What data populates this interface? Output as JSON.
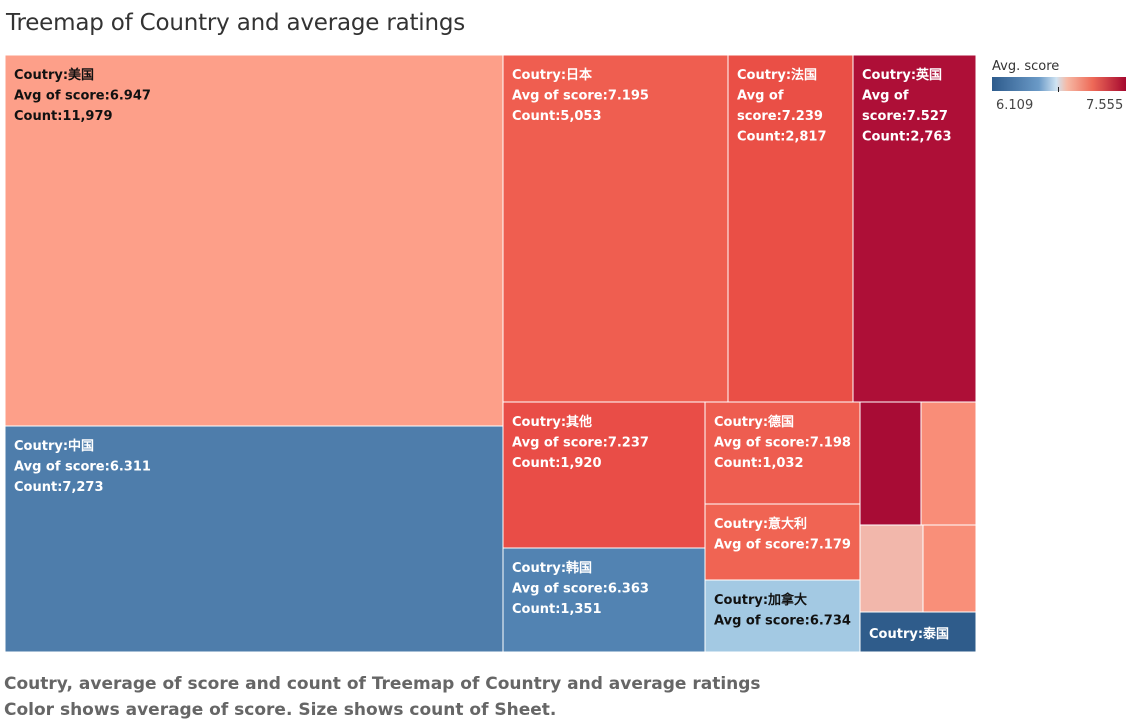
{
  "chart_data": {
    "type": "treemap",
    "title": "Treemap of Country and average ratings",
    "color_legend": {
      "title": "Avg. score",
      "min": "6.109",
      "max": "7.555",
      "range": [
        6.109,
        7.555
      ]
    },
    "items": [
      {
        "label": "Coutry:美国",
        "score_label": "Avg of score:6.947",
        "count_label": "Count:11,979",
        "score": 6.947,
        "count": 11979,
        "color": "#fd9f89",
        "text_color": "#111111"
      },
      {
        "label": "Coutry:中国",
        "score_label": "Avg of score:6.311",
        "count_label": "Count:7,273",
        "score": 6.311,
        "count": 7273,
        "color": "#4e7dab",
        "text_color": "#ffffff"
      },
      {
        "label": "Coutry:日本",
        "score_label": "Avg of score:7.195",
        "count_label": "Count:5,053",
        "score": 7.195,
        "count": 5053,
        "color": "#ef5e50",
        "text_color": "#ffffff"
      },
      {
        "label": "Coutry:法国",
        "score_label": "Avg of score:7.239",
        "count_label": "Count:2,817",
        "score": 7.239,
        "count": 2817,
        "color": "#ea4f46",
        "text_color": "#ffffff"
      },
      {
        "label": "Coutry:英国",
        "score_label": "Avg of score:7.527",
        "count_label": "Count:2,763",
        "score": 7.527,
        "count": 2763,
        "color": "#ae0f37",
        "text_color": "#ffffff"
      },
      {
        "label": "Coutry:其他",
        "score_label": "Avg of score:7.237",
        "count_label": "Count:1,920",
        "score": 7.237,
        "count": 1920,
        "color": "#e94d47",
        "text_color": "#ffffff"
      },
      {
        "label": "Coutry:韩国",
        "score_label": "Avg of score:6.363",
        "count_label": "Count:1,351",
        "score": 6.363,
        "count": 1351,
        "color": "#5283b2",
        "text_color": "#ffffff"
      },
      {
        "label": "Coutry:德国",
        "score_label": "Avg of score:7.198",
        "count_label": "Count:1,032",
        "score": 7.198,
        "count": 1032,
        "color": "#ee5d50",
        "text_color": "#ffffff"
      },
      {
        "label": "Coutry:意大利",
        "score_label": "Avg of score:7.179",
        "count_label": "",
        "score": 7.179,
        "count": null,
        "color": "#f06453",
        "text_color": "#ffffff"
      },
      {
        "label": "Coutry:加拿大",
        "score_label": "Avg of score:6.734",
        "count_label": "",
        "score": 6.734,
        "count": null,
        "color": "#a3c9e3",
        "text_color": "#111111"
      },
      {
        "label": "",
        "score_label": "",
        "count_label": "",
        "score": null,
        "count": null,
        "color": "#a80c35",
        "text_color": "#ffffff"
      },
      {
        "label": "",
        "score_label": "",
        "count_label": "",
        "score": null,
        "count": null,
        "color": "#f98d78",
        "text_color": "#ffffff"
      },
      {
        "label": "",
        "score_label": "",
        "count_label": "",
        "score": null,
        "count": null,
        "color": "#f2b7ab",
        "text_color": "#ffffff"
      },
      {
        "label": "",
        "score_label": "",
        "count_label": "",
        "score": null,
        "count": null,
        "color": "#f98f79",
        "text_color": "#ffffff"
      },
      {
        "label": "Coutry:泰国",
        "score_label": "",
        "count_label": "",
        "score": null,
        "count": null,
        "color": "#2f5c8b",
        "text_color": "#ffffff"
      }
    ]
  },
  "caption": {
    "line1": "Coutry, average of score and count of Treemap of Country and average ratings",
    "line2": "Color shows average of score.  Size shows count of Sheet."
  }
}
